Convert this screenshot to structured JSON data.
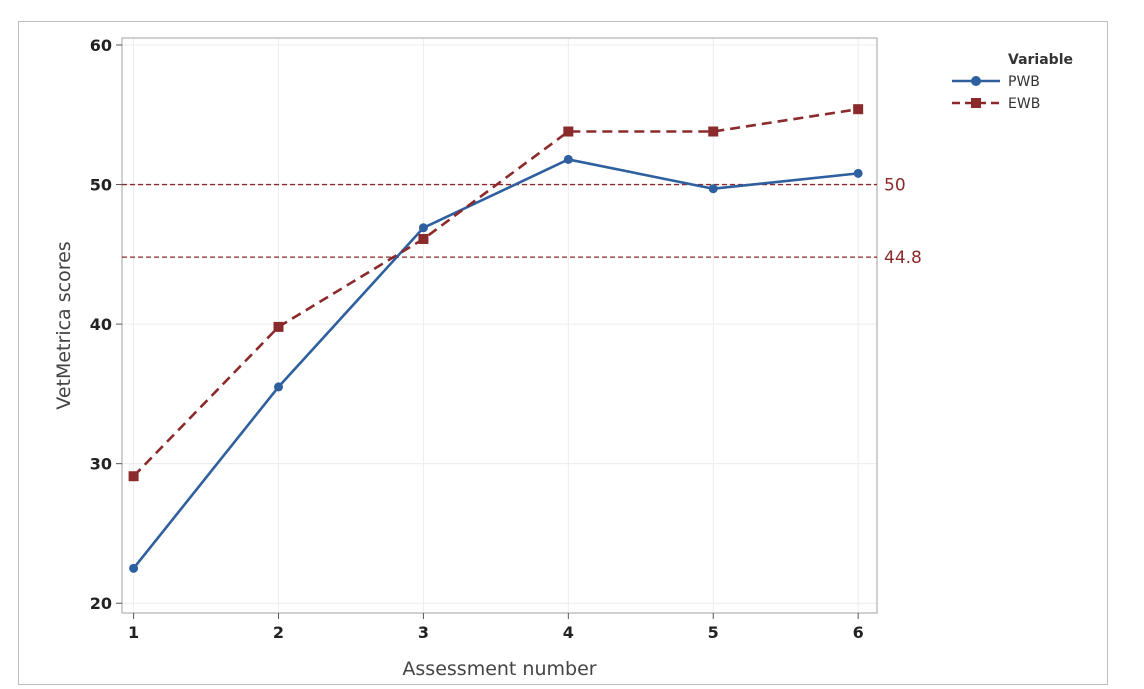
{
  "chart_data": {
    "type": "line",
    "x": [
      1,
      2,
      3,
      4,
      5,
      6
    ],
    "xlabel": "Assessment number",
    "ylabel": "VetMetrica scores",
    "xlim": [
      0.92,
      6.13
    ],
    "ylim": [
      19.3,
      60.5
    ],
    "xticks": [
      "1",
      "2",
      "3",
      "4",
      "5",
      "6"
    ],
    "yticks": [
      "20",
      "30",
      "40",
      "50",
      "60"
    ],
    "grid": true,
    "legend_title": "Variable",
    "legend_position": "top-right outside",
    "series": [
      {
        "name": "PWB",
        "values": [
          22.5,
          35.5,
          46.9,
          51.8,
          49.7,
          50.8
        ],
        "color": "#2e5f9e",
        "marker": "circle",
        "dash": "solid"
      },
      {
        "name": "EWB",
        "values": [
          29.1,
          39.8,
          46.1,
          53.8,
          53.8,
          55.4
        ],
        "color": "#8b2a2a",
        "marker": "square",
        "dash": "dashed"
      }
    ],
    "reference_lines": [
      {
        "value": 50,
        "label": "50",
        "color": "#8b2a2a"
      },
      {
        "value": 44.8,
        "label": "44.8",
        "color": "#8b2a2a"
      }
    ]
  }
}
